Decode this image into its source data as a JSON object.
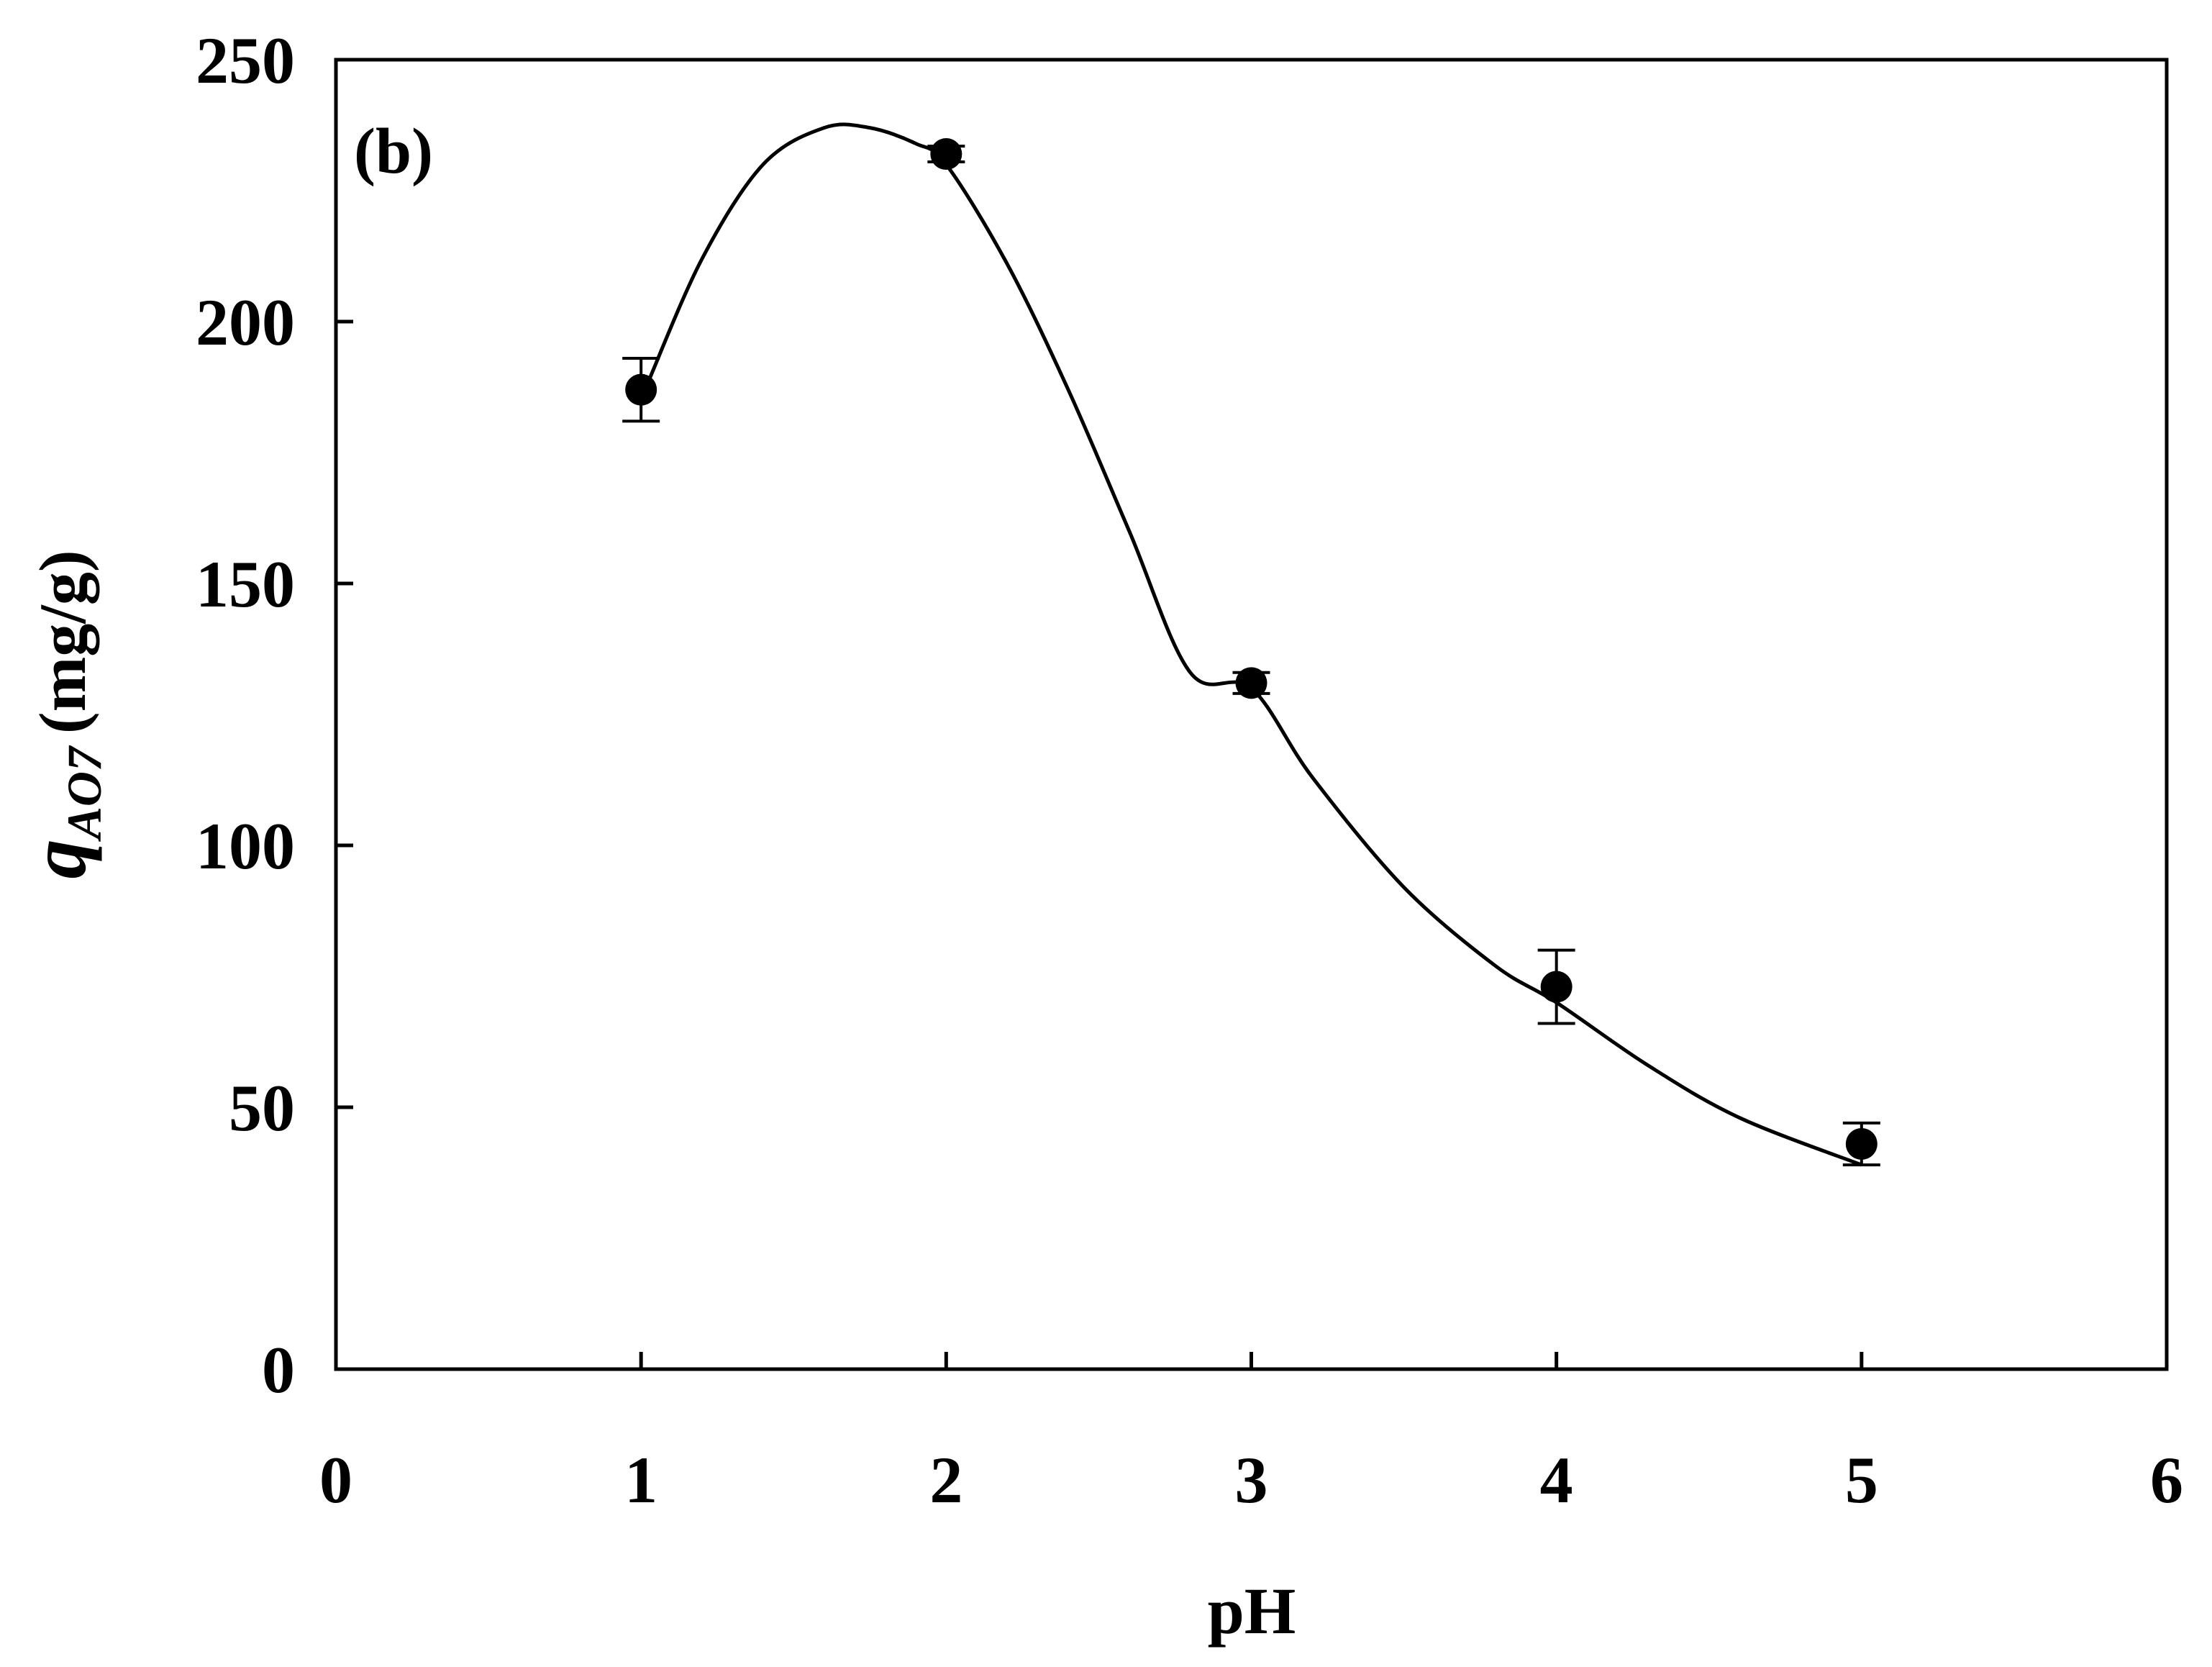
{
  "chart_data": {
    "type": "scatter",
    "panel_label": "(b)",
    "xlabel": "pH",
    "ylabel": {
      "symbol": "q",
      "subscript": "AO7",
      "unit": "(mg/g)"
    },
    "xlim": [
      0,
      6
    ],
    "ylim": [
      0,
      250
    ],
    "xticks": [
      0,
      1,
      2,
      3,
      4,
      5,
      6
    ],
    "yticks": [
      0,
      50,
      100,
      150,
      200,
      250
    ],
    "grid": false,
    "legend": "none",
    "series": [
      {
        "points": [
          {
            "x": 1,
            "y": 187,
            "err": 6
          },
          {
            "x": 2,
            "y": 232,
            "err": 1.5
          },
          {
            "x": 3,
            "y": 131,
            "err": 2
          },
          {
            "x": 4,
            "y": 73,
            "err": 7
          },
          {
            "x": 5,
            "y": 43,
            "err": 4
          }
        ],
        "marker_color": "#000000"
      }
    ],
    "fit_curve": {
      "x": [
        1.02,
        1.2,
        1.4,
        1.6,
        1.75,
        1.9,
        2.0,
        2.2,
        2.4,
        2.6,
        2.8,
        3.0,
        3.2,
        3.5,
        3.8,
        4.0,
        4.3,
        4.6,
        5.0
      ],
      "y": [
        188,
        212,
        230,
        237,
        237,
        234,
        230,
        211,
        187,
        160,
        133,
        130,
        113,
        92,
        77,
        70,
        58,
        48,
        39
      ]
    }
  }
}
